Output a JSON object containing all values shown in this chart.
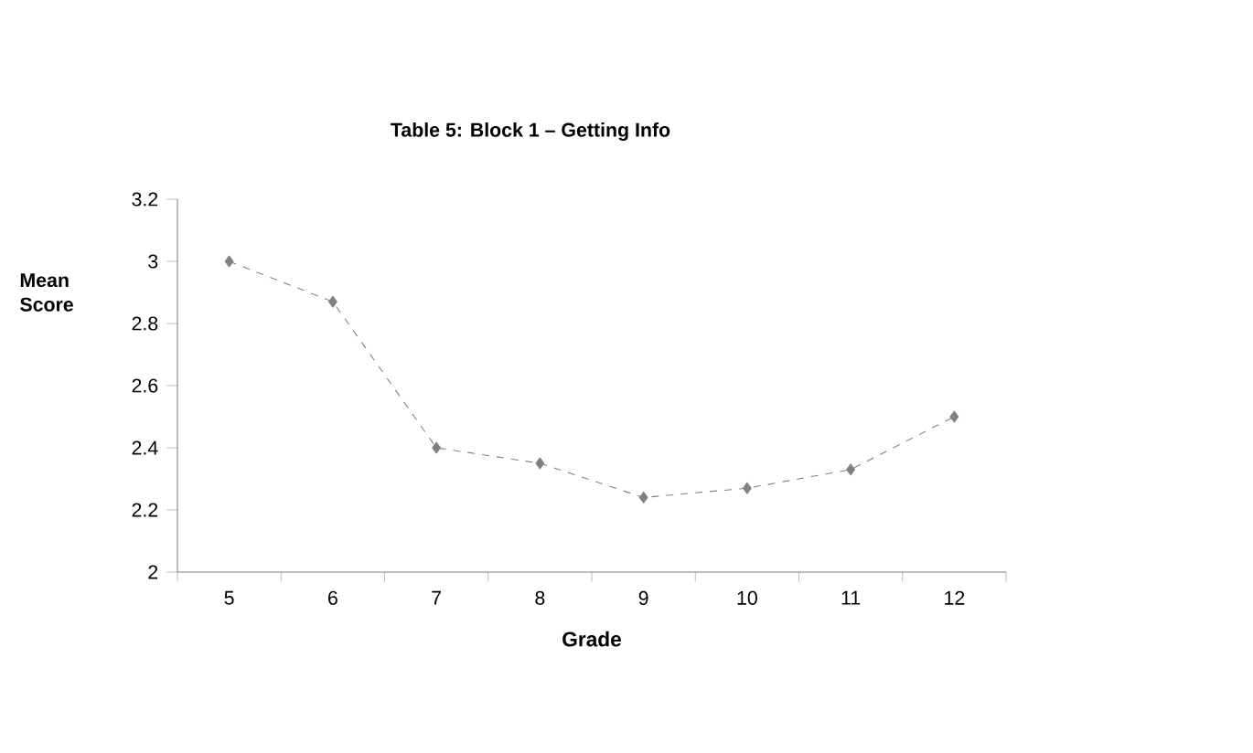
{
  "chart_data": {
    "type": "line",
    "title": "Table 5: Block 1 – Getting Info",
    "xlabel": "Grade",
    "ylabel": "Mean Score",
    "categories": [
      "5",
      "6",
      "7",
      "8",
      "9",
      "10",
      "11",
      "12"
    ],
    "series": [
      {
        "color": "#808080",
        "values": [
          3.0,
          2.87,
          2.4,
          2.35,
          2.24,
          2.27,
          2.33,
          2.5
        ]
      }
    ],
    "ylim": [
      2,
      3.2
    ],
    "yticks": [
      2,
      2.2,
      2.4,
      2.6,
      2.8,
      3,
      3.2
    ],
    "grid": false,
    "marker": "diamond",
    "line_style": "dashed"
  }
}
